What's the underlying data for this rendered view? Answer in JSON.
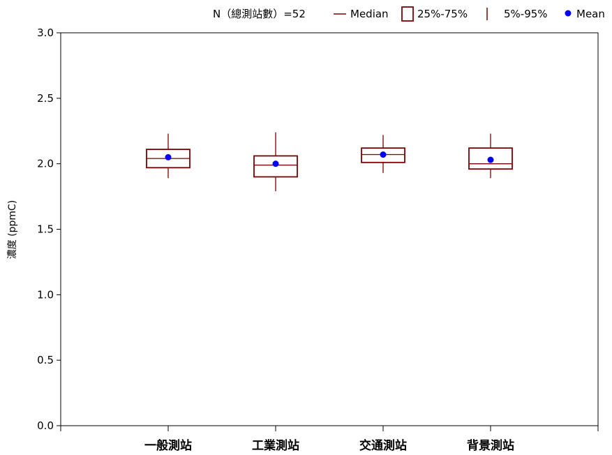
{
  "chart_data": {
    "type": "box",
    "ylabel": "濃度 (ppmC)",
    "ylim": [
      0.0,
      3.0
    ],
    "yticks": [
      "0.0",
      "0.5",
      "1.0",
      "1.5",
      "2.0",
      "2.5",
      "3.0"
    ],
    "categories": [
      "一般測站",
      "工業測站",
      "交通測站",
      "背景測站"
    ],
    "boxes": [
      {
        "p5": 1.89,
        "q1": 1.97,
        "median": 2.04,
        "q3": 2.11,
        "p95": 2.23,
        "mean": 2.05
      },
      {
        "p5": 1.79,
        "q1": 1.9,
        "median": 1.99,
        "q3": 2.06,
        "p95": 2.24,
        "mean": 2.0
      },
      {
        "p5": 1.93,
        "q1": 2.01,
        "median": 2.07,
        "q3": 2.12,
        "p95": 2.22,
        "mean": 2.07
      },
      {
        "p5": 1.89,
        "q1": 1.96,
        "median": 2.0,
        "q3": 2.12,
        "p95": 2.23,
        "mean": 2.03
      }
    ],
    "legend": {
      "n_label": "N（總測站數）=52",
      "median": "Median",
      "iqr": "25%-75%",
      "range": "5%-95%",
      "mean": "Mean",
      "placement": "top-right"
    },
    "grid": false,
    "colors": {
      "box": "#7a0000",
      "mean": "#0000ff",
      "axis": "#000000"
    }
  }
}
